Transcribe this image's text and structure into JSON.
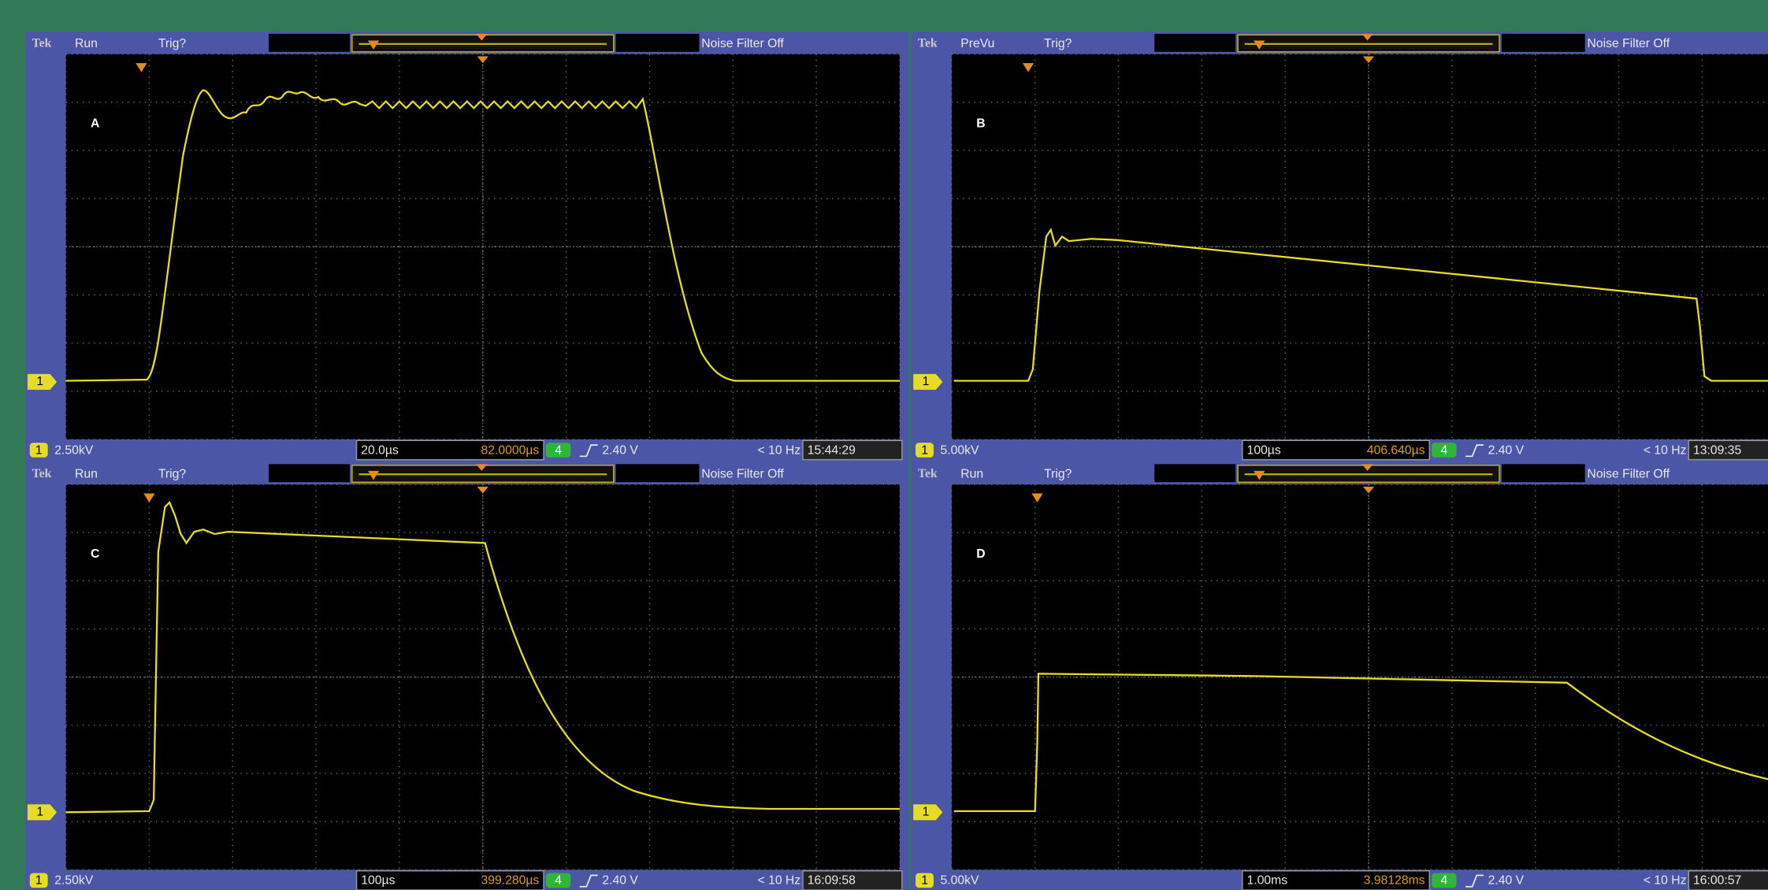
{
  "panels": [
    {
      "brand": "Tek",
      "mode": "Run",
      "trigger_state": "Trig?",
      "filter": "Noise Filter Off",
      "letter": "A",
      "channel": "1",
      "volts_per_div": "2.50kV",
      "time_per_div": "20.0µs",
      "position": "82.0000µs",
      "trigger_channel": "4",
      "trigger_level": "2.40 V",
      "frequency": "< 10 Hz",
      "clock": "15:44:29"
    },
    {
      "brand": "Tek",
      "mode": "PreVu",
      "trigger_state": "Trig?",
      "filter": "Noise Filter Off",
      "letter": "B",
      "channel": "1",
      "volts_per_div": "5.00kV",
      "time_per_div": "100µs",
      "position": "406.640µs",
      "trigger_channel": "4",
      "trigger_level": "2.40 V",
      "frequency": "< 10 Hz",
      "clock": "13:09:35"
    },
    {
      "brand": "Tek",
      "mode": "Run",
      "trigger_state": "Trig?",
      "filter": "Noise Filter Off",
      "letter": "C",
      "channel": "1",
      "volts_per_div": "2.50kV",
      "time_per_div": "100µs",
      "position": "399.280µs",
      "trigger_channel": "4",
      "trigger_level": "2.40 V",
      "frequency": "< 10 Hz",
      "clock": "16:09:58"
    },
    {
      "brand": "Tek",
      "mode": "Run",
      "trigger_state": "Trig?",
      "filter": "Noise Filter Off",
      "letter": "D",
      "channel": "1",
      "volts_per_div": "5.00kV",
      "time_per_div": "1.00ms",
      "position": "3.98128ms",
      "trigger_channel": "4",
      "trigger_level": "2.40 V",
      "frequency": "< 10 Hz",
      "clock": "16:00:57"
    }
  ]
}
